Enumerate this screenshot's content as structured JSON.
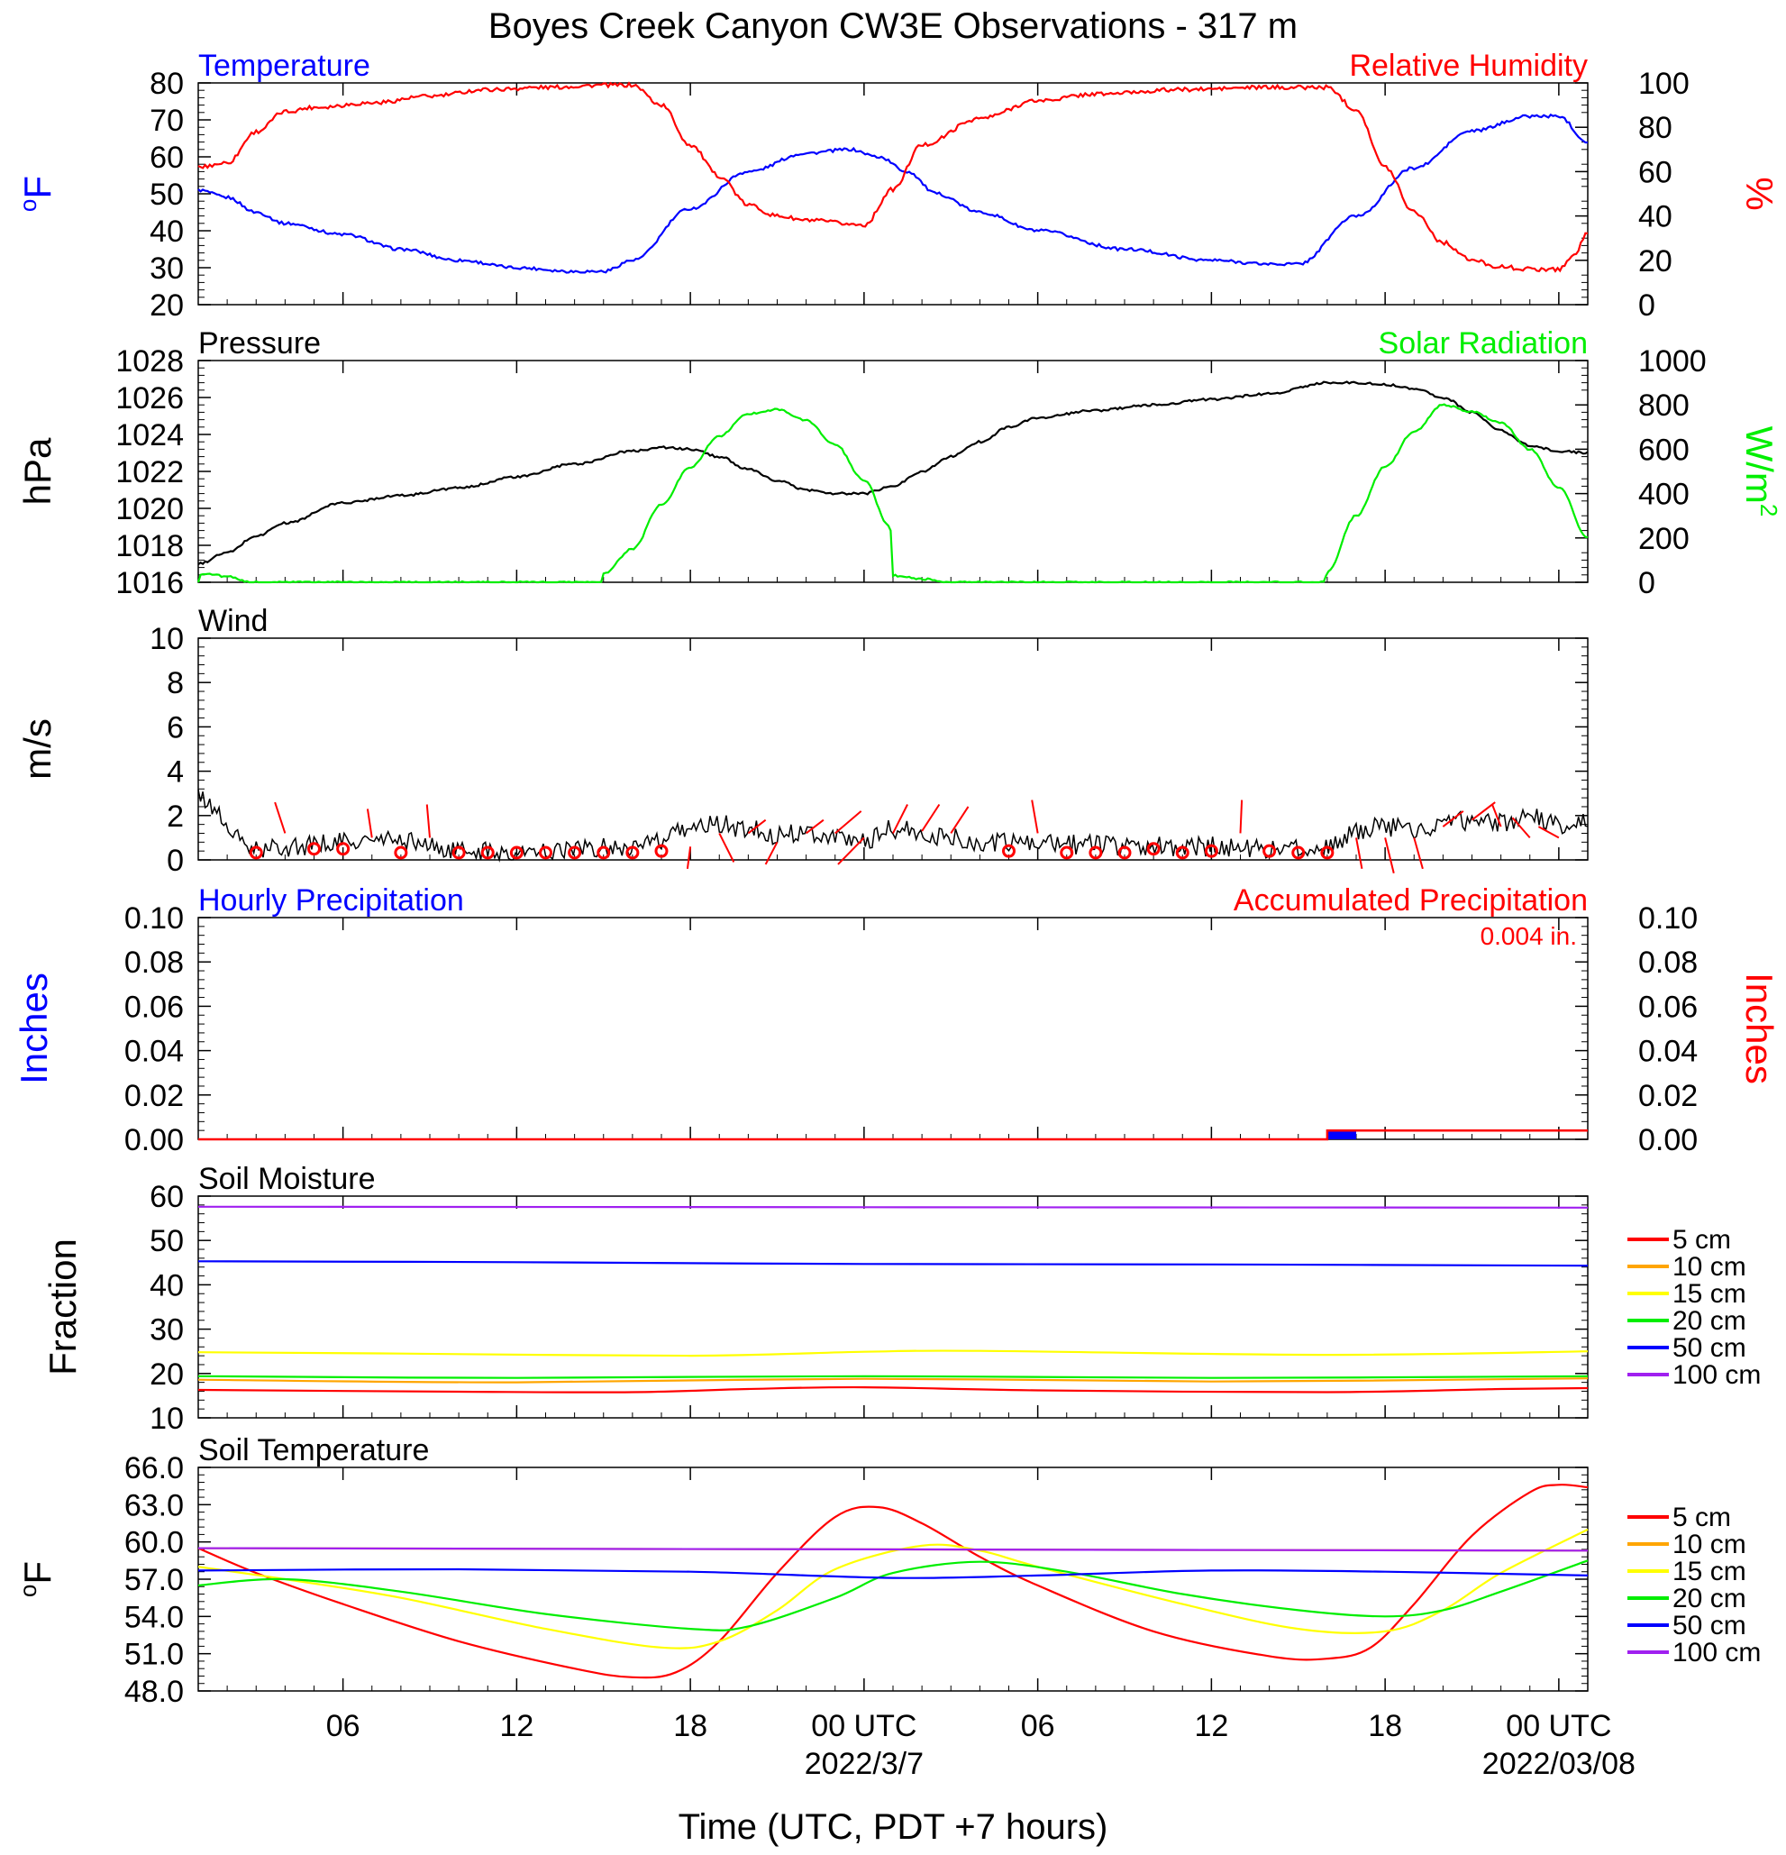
{
  "page_title": "Boyes Creek Canyon CW3E Observations - 317 m",
  "time_axis": {
    "start_hour": 1,
    "end_hour": 49,
    "ticks": [
      {
        "hour": 6,
        "label": "06"
      },
      {
        "hour": 12,
        "label": "12"
      },
      {
        "hour": 18,
        "label": "18"
      },
      {
        "hour": 24,
        "label": "00 UTC",
        "date": "2022/3/7"
      },
      {
        "hour": 30,
        "label": "06"
      },
      {
        "hour": 36,
        "label": "12"
      },
      {
        "hour": 42,
        "label": "18"
      },
      {
        "hour": 48,
        "label": "00 UTC",
        "date": "2022/03/08"
      }
    ],
    "xlabel": "Time (UTC, PDT +7 hours)"
  },
  "colors": {
    "red": "#ff0000",
    "blue": "#0000ff",
    "green": "#00ee00",
    "yellow": "#ffff00",
    "orange": "#ffa500",
    "purple": "#a020f0",
    "black": "#000000"
  },
  "chart_data": [
    {
      "id": "temp_rh",
      "type": "line",
      "left_title": "Temperature",
      "right_title": "Relative Humidity",
      "left_ylabel": "oF",
      "right_ylabel": "%",
      "left_ylim": [
        20,
        80
      ],
      "left_ticks": [
        20,
        30,
        40,
        50,
        60,
        70,
        80
      ],
      "right_ylim": [
        0,
        100
      ],
      "right_ticks": [
        0,
        20,
        40,
        60,
        80,
        100
      ],
      "series": [
        {
          "axis": "left",
          "color": "#0000ff",
          "x": [
            1,
            2,
            3,
            4,
            6,
            8,
            10,
            12,
            14,
            15,
            16,
            18,
            20,
            22,
            23.5,
            24.5,
            25.5,
            26.5,
            28,
            30,
            33,
            36,
            38,
            39,
            41,
            43,
            45,
            47,
            48,
            49
          ],
          "y": [
            51,
            49,
            45,
            42,
            39,
            35,
            32,
            30,
            29,
            29,
            32,
            46,
            56,
            61,
            62,
            60,
            56,
            50,
            45,
            40,
            35,
            32,
            31,
            31,
            44,
            57,
            67,
            71,
            71,
            64
          ]
        },
        {
          "axis": "right",
          "color": "#ff0000",
          "x": [
            1,
            2,
            3,
            4,
            5,
            7,
            9,
            11,
            13,
            15,
            16,
            17,
            18,
            19,
            20,
            21,
            22,
            24,
            25,
            26,
            28,
            30,
            32,
            35,
            38,
            40,
            41,
            42,
            43,
            44,
            45,
            46,
            47,
            48,
            48.5,
            49
          ],
          "y": [
            62,
            64,
            78,
            87,
            89,
            91,
            94,
            97,
            98,
            99,
            99,
            90,
            72,
            58,
            45,
            40,
            38,
            36,
            52,
            72,
            84,
            92,
            95,
            97,
            98,
            98,
            88,
            62,
            42,
            28,
            20,
            17,
            16,
            16,
            22,
            32
          ]
        }
      ]
    },
    {
      "id": "pressure_solar",
      "type": "line",
      "left_title": "Pressure",
      "right_title": "Solar Radiation",
      "left_ylabel": "hPa",
      "right_ylabel": "W/m2",
      "left_ylim": [
        1016,
        1028
      ],
      "left_ticks": [
        1016,
        1018,
        1020,
        1022,
        1024,
        1026,
        1028
      ],
      "right_ylim": [
        0,
        1000
      ],
      "right_ticks": [
        0,
        200,
        400,
        600,
        800,
        1000
      ],
      "series": [
        {
          "axis": "left",
          "color": "#000000",
          "x": [
            1,
            2,
            3,
            4,
            6,
            8,
            10,
            12,
            14,
            16,
            17,
            18,
            19,
            20,
            21,
            22,
            23,
            24,
            25,
            26,
            27,
            28,
            29,
            30,
            32,
            34,
            36,
            38,
            40,
            41,
            42,
            43,
            44,
            45,
            46,
            47,
            48,
            49
          ],
          "y": [
            1017,
            1017.6,
            1018.5,
            1019.2,
            1020.3,
            1020.7,
            1021.1,
            1021.7,
            1022.4,
            1023.1,
            1023.3,
            1023.2,
            1022.8,
            1022.1,
            1021.5,
            1021,
            1020.8,
            1020.8,
            1021.2,
            1022,
            1022.8,
            1023.6,
            1024.4,
            1024.9,
            1025.3,
            1025.6,
            1025.9,
            1026.2,
            1026.8,
            1026.8,
            1026.7,
            1026.5,
            1026,
            1025.2,
            1024.2,
            1023.4,
            1023.1,
            1023
          ]
        },
        {
          "axis": "right",
          "color": "#00ee00",
          "x": [
            1,
            1.1,
            1.5,
            2,
            2.8,
            14.9,
            15,
            16,
            17,
            18,
            19,
            20,
            21,
            22,
            23,
            24,
            24.9,
            25,
            26,
            27,
            39.9,
            40,
            41,
            42,
            43,
            44,
            45,
            46,
            47,
            48,
            49
          ],
          "y": [
            0,
            40,
            35,
            25,
            0,
            0,
            40,
            150,
            350,
            520,
            660,
            760,
            780,
            730,
            620,
            460,
            250,
            30,
            15,
            0,
            0,
            50,
            300,
            520,
            680,
            800,
            770,
            720,
            600,
            430,
            200
          ]
        }
      ]
    },
    {
      "id": "wind",
      "type": "line",
      "left_title": "Wind",
      "left_ylabel": "m/s",
      "left_ylim": [
        0,
        10
      ],
      "left_ticks": [
        0,
        2,
        4,
        6,
        8,
        10
      ],
      "series": [
        {
          "axis": "left",
          "color": "#000000",
          "x": [
            1,
            1.5,
            2,
            2.5,
            3,
            4,
            6,
            8,
            10,
            12,
            14,
            16,
            17,
            18,
            19,
            20,
            21,
            22,
            23,
            24,
            25,
            26,
            27,
            28,
            29,
            30,
            32,
            34,
            36,
            38,
            40,
            41,
            42,
            43,
            44,
            45,
            46,
            47,
            48,
            49
          ],
          "y": [
            2.8,
            2.4,
            1.5,
            0.8,
            0.4,
            0.6,
            0.8,
            0.9,
            0.4,
            0.3,
            0.5,
            0.6,
            0.8,
            1.5,
            1.6,
            1.4,
            1.1,
            1.3,
            1.0,
            0.9,
            1.4,
            1.2,
            1.0,
            0.8,
            0.8,
            0.7,
            0.7,
            0.6,
            0.6,
            0.5,
            0.5,
            1.3,
            1.5,
            1.4,
            1.6,
            1.8,
            1.7,
            2.0,
            1.5,
            1.8
          ]
        }
      ],
      "barbs": [
        {
          "x": 3,
          "y": 0,
          "calm": true
        },
        {
          "x": 4,
          "y": 1.2,
          "dx": -0.35,
          "dy": 1.4
        },
        {
          "x": 5,
          "y": 0.5,
          "calm": true
        },
        {
          "x": 6,
          "y": 0.5,
          "calm": true
        },
        {
          "x": 7,
          "y": 1.0,
          "dx": -0.15,
          "dy": 1.3
        },
        {
          "x": 8,
          "y": 0.3,
          "calm": true
        },
        {
          "x": 9,
          "y": 1.0,
          "dx": -0.1,
          "dy": 1.5
        },
        {
          "x": 10,
          "y": 0,
          "calm": true
        },
        {
          "x": 11,
          "y": 0,
          "calm": true
        },
        {
          "x": 12,
          "y": 0,
          "calm": true
        },
        {
          "x": 13,
          "y": 0,
          "calm": true
        },
        {
          "x": 14,
          "y": 0,
          "calm": true
        },
        {
          "x": 15,
          "y": 0,
          "calm": true
        },
        {
          "x": 16,
          "y": 0,
          "calm": true
        },
        {
          "x": 17,
          "y": 0.4,
          "calm": true
        },
        {
          "x": 18,
          "y": 0.6,
          "dx": -0.1,
          "dy": -1.0
        },
        {
          "x": 19,
          "y": 1.2,
          "dx": 0.5,
          "dy": -1.3
        },
        {
          "x": 20,
          "y": 1.2,
          "dx": 0.6,
          "dy": 0.6
        },
        {
          "x": 21,
          "y": 0.8,
          "dx": -0.4,
          "dy": -1.0
        },
        {
          "x": 22,
          "y": 1.2,
          "dx": 0.6,
          "dy": 0.6
        },
        {
          "x": 23,
          "y": 1.2,
          "dx": 0.9,
          "dy": 1.0
        },
        {
          "x": 24,
          "y": 1.0,
          "dx": -0.9,
          "dy": -1.2
        },
        {
          "x": 25,
          "y": 1.2,
          "dx": 0.5,
          "dy": 1.3
        },
        {
          "x": 26,
          "y": 1.3,
          "dx": 0.6,
          "dy": 1.2
        },
        {
          "x": 27,
          "y": 1.2,
          "dx": 0.6,
          "dy": 1.2
        },
        {
          "x": 29,
          "y": 0.4,
          "calm": true
        },
        {
          "x": 30,
          "y": 1.2,
          "dx": -0.2,
          "dy": 1.5
        },
        {
          "x": 31,
          "y": 0.2,
          "calm": true
        },
        {
          "x": 32,
          "y": 0.3,
          "calm": true
        },
        {
          "x": 33,
          "y": 0.1,
          "calm": true
        },
        {
          "x": 34,
          "y": 0.5,
          "calm": true
        },
        {
          "x": 35,
          "y": 0.3,
          "calm": true
        },
        {
          "x": 36,
          "y": 0.4,
          "calm": true
        },
        {
          "x": 37,
          "y": 1.2,
          "dx": 0.05,
          "dy": 1.5
        },
        {
          "x": 38,
          "y": 0.4,
          "calm": true
        },
        {
          "x": 39,
          "y": 0.3,
          "calm": true
        },
        {
          "x": 40,
          "y": 0.1,
          "calm": true
        },
        {
          "x": 41,
          "y": 1.0,
          "dx": 0.2,
          "dy": -1.4
        },
        {
          "x": 42,
          "y": 1.0,
          "dx": 0.3,
          "dy": -1.6
        },
        {
          "x": 43,
          "y": 1.0,
          "dx": 0.3,
          "dy": -1.4
        },
        {
          "x": 44,
          "y": 1.5,
          "dx": 0.7,
          "dy": 0.7
        },
        {
          "x": 45,
          "y": 1.8,
          "dx": 0.8,
          "dy": 0.8
        },
        {
          "x": 46,
          "y": 1.5,
          "dx": -0.3,
          "dy": 1.0
        },
        {
          "x": 47,
          "y": 1.0,
          "dx": -0.6,
          "dy": 0.9
        },
        {
          "x": 48,
          "y": 1.0,
          "dx": -0.7,
          "dy": 0.5
        }
      ]
    },
    {
      "id": "precip",
      "type": "bar",
      "left_title": "Hourly Precipitation",
      "right_title": "Accumulated Precipitation",
      "annotation": "0.004 in.",
      "left_ylabel": "Inches",
      "right_ylabel": "Inches",
      "left_ylim": [
        0,
        0.1
      ],
      "left_ticks": [
        "0.00",
        "0.02",
        "0.04",
        "0.06",
        "0.08",
        "0.10"
      ],
      "right_ticks": [
        "0.00",
        "0.02",
        "0.04",
        "0.06",
        "0.08",
        "0.10"
      ],
      "hourly_bars": [
        {
          "x_start": 40,
          "x_end": 41,
          "value": 0.004
        }
      ],
      "accumulated": {
        "x": [
          1,
          40,
          40,
          49
        ],
        "y": [
          0,
          0,
          0.004,
          0.004
        ]
      }
    },
    {
      "id": "soil_moisture",
      "type": "line",
      "left_title": "Soil Moisture",
      "left_ylabel": "Fraction",
      "left_ylim": [
        10,
        60
      ],
      "left_ticks": [
        10,
        20,
        30,
        40,
        50,
        60
      ],
      "legend": [
        "5 cm",
        "10 cm",
        "15 cm",
        "20 cm",
        "50 cm",
        "100 cm"
      ],
      "series": [
        {
          "name": "5 cm",
          "color": "#ff0000",
          "x": [
            1,
            10,
            16,
            20,
            24,
            30,
            40,
            46,
            49
          ],
          "y": [
            16.3,
            15.9,
            15.8,
            16.5,
            16.9,
            16.2,
            15.8,
            16.5,
            16.7
          ]
        },
        {
          "name": "10 cm",
          "color": "#ffa500",
          "x": [
            1,
            12,
            24,
            36,
            49
          ],
          "y": [
            18.6,
            18.0,
            18.8,
            18.2,
            18.9
          ]
        },
        {
          "name": "15 cm",
          "color": "#ffff00",
          "x": [
            1,
            8,
            18,
            24,
            28,
            40,
            49
          ],
          "y": [
            24.8,
            24.5,
            24.0,
            24.9,
            25.1,
            24.2,
            25.0
          ]
        },
        {
          "name": "20 cm",
          "color": "#00ee00",
          "x": [
            1,
            12,
            24,
            36,
            49
          ],
          "y": [
            19.4,
            19.0,
            19.4,
            19.0,
            19.4
          ]
        },
        {
          "name": "50 cm",
          "color": "#0000ff",
          "x": [
            1,
            12,
            24,
            36,
            49
          ],
          "y": [
            45.3,
            45.1,
            44.7,
            44.6,
            44.3
          ]
        },
        {
          "name": "100 cm",
          "color": "#a020f0",
          "x": [
            1,
            24,
            49
          ],
          "y": [
            57.6,
            57.5,
            57.4
          ]
        }
      ]
    },
    {
      "id": "soil_temp",
      "type": "line",
      "left_title": "Soil Temperature",
      "left_ylabel": "oF",
      "left_ylim": [
        48,
        66
      ],
      "left_ticks": [
        "48.0",
        "51.0",
        "54.0",
        "57.0",
        "60.0",
        "63.0",
        "66.0"
      ],
      "legend": [
        "5 cm",
        "10 cm",
        "15 cm",
        "20 cm",
        "50 cm",
        "100 cm"
      ],
      "series": [
        {
          "name": "5 cm",
          "color": "#ff0000",
          "x": [
            1,
            3,
            6,
            10,
            14,
            16,
            17.5,
            19,
            21,
            23,
            24.5,
            26,
            28,
            30,
            34,
            38,
            40,
            41.5,
            43,
            45,
            47,
            48,
            49
          ],
          "y": [
            59.5,
            57.5,
            55,
            52,
            49.8,
            49.1,
            49.5,
            52,
            57.5,
            62,
            62.8,
            61.5,
            58.8,
            56.5,
            52.8,
            50.8,
            50.6,
            51.5,
            55,
            60.5,
            64,
            64.6,
            64.4
          ]
        },
        {
          "name": "10 cm",
          "color": "#ffa500",
          "x": [
            1,
            24,
            49
          ],
          "y": [
            59.5,
            59.4,
            59.3
          ]
        },
        {
          "name": "15 cm",
          "color": "#ffff00",
          "x": [
            1,
            4,
            8,
            13,
            17,
            19,
            21,
            23,
            26,
            28,
            30,
            35,
            39,
            42,
            44,
            46,
            49
          ],
          "y": [
            58,
            57,
            55.5,
            53,
            51.5,
            52,
            54.5,
            57.8,
            59.7,
            59.3,
            58,
            55,
            53,
            52.8,
            54.5,
            57.5,
            61
          ]
        },
        {
          "name": "20 cm",
          "color": "#00ee00",
          "x": [
            1,
            4,
            8,
            13,
            18,
            20,
            23,
            25,
            28,
            31,
            35,
            39,
            42,
            44,
            46,
            49
          ],
          "y": [
            56.5,
            57,
            56,
            54.2,
            53,
            53.2,
            55.5,
            57.5,
            58.4,
            57.6,
            55.8,
            54.5,
            54,
            54.5,
            56,
            58.5
          ]
        },
        {
          "name": "50 cm",
          "color": "#0000ff",
          "x": [
            1,
            10,
            18,
            25,
            30,
            36,
            42,
            49
          ],
          "y": [
            57.7,
            57.8,
            57.6,
            57.1,
            57.3,
            57.7,
            57.6,
            57.3
          ]
        },
        {
          "name": "100 cm",
          "color": "#a020f0",
          "x": [
            1,
            24,
            49
          ],
          "y": [
            59.5,
            59.4,
            59.3
          ]
        }
      ]
    }
  ]
}
